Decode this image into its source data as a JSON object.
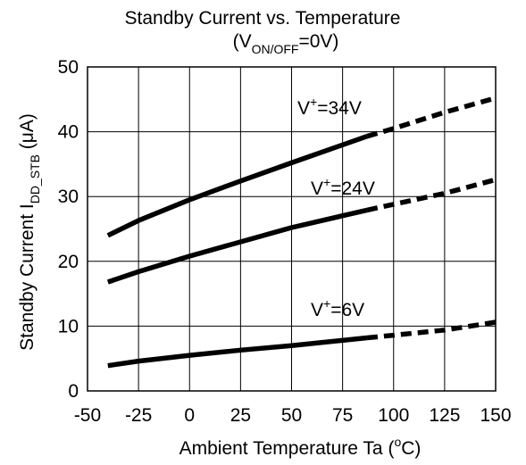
{
  "chart_data": {
    "type": "line",
    "title": "Standby Current vs. Temperature",
    "subtitle": {
      "open": "(V",
      "sub": "ON/OFF",
      "close": "=0V)"
    },
    "xlabel": {
      "text": "Ambient Temperature  Ta  (",
      "sup": "o",
      "unit": "C)"
    },
    "ylabel": {
      "text": "Standby Current  I",
      "sub": "DD_STB",
      "unit": "  (μA)"
    },
    "xlim": [
      -50,
      150
    ],
    "ylim": [
      0,
      50
    ],
    "xticks": [
      "-50",
      "-25",
      "0",
      "25",
      "50",
      "75",
      "100",
      "125",
      "150"
    ],
    "yticks": [
      "0",
      "10",
      "20",
      "30",
      "40",
      "50"
    ],
    "grid": true,
    "series": [
      {
        "name": "V+=34V",
        "label": {
          "pre": "V",
          "sup": "+",
          "post": "=34V"
        },
        "solid": [
          [
            -40,
            24
          ],
          [
            -25,
            26.3
          ],
          [
            0,
            29.5
          ],
          [
            25,
            32.4
          ],
          [
            50,
            35.2
          ],
          [
            87,
            39.3
          ]
        ],
        "dashed": [
          [
            87,
            39.3
          ],
          [
            100,
            40.5
          ],
          [
            125,
            43
          ],
          [
            150,
            45.2
          ]
        ]
      },
      {
        "name": "V+=24V",
        "label": {
          "pre": "V",
          "sup": "+",
          "post": "=24V"
        },
        "solid": [
          [
            -40,
            16.8
          ],
          [
            -25,
            18.4
          ],
          [
            0,
            20.8
          ],
          [
            25,
            23
          ],
          [
            50,
            25.2
          ],
          [
            87,
            27.9
          ]
        ],
        "dashed": [
          [
            87,
            27.9
          ],
          [
            100,
            28.8
          ],
          [
            125,
            30.5
          ],
          [
            150,
            32.6
          ]
        ]
      },
      {
        "name": "V+=6V",
        "label": {
          "pre": "V",
          "sup": "+",
          "post": "=6V"
        },
        "solid": [
          [
            -40,
            3.9
          ],
          [
            -25,
            4.6
          ],
          [
            0,
            5.5
          ],
          [
            25,
            6.3
          ],
          [
            50,
            7
          ],
          [
            87,
            8.2
          ]
        ],
        "dashed": [
          [
            87,
            8.2
          ],
          [
            100,
            8.6
          ],
          [
            125,
            9.4
          ],
          [
            150,
            10.6
          ]
        ]
      }
    ]
  }
}
